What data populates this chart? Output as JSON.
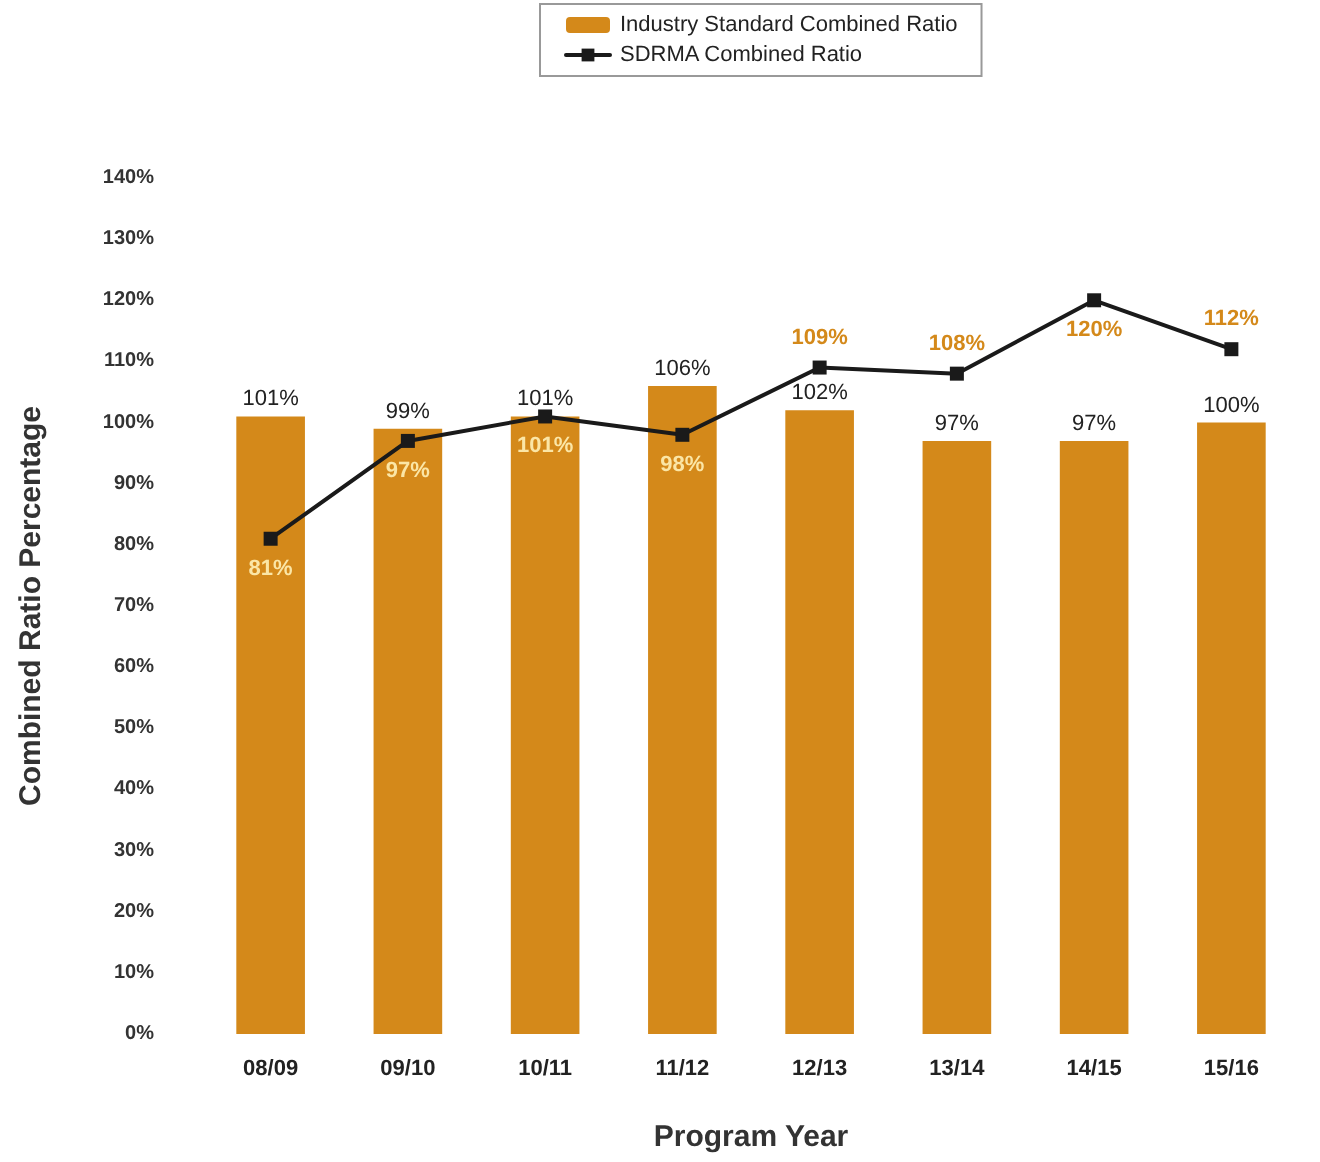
{
  "chart_data": {
    "type": "bar",
    "xlabel": "Program Year",
    "ylabel": "Combined Ratio Percentage",
    "categories": [
      "08/09",
      "09/10",
      "10/11",
      "11/12",
      "12/13",
      "13/14",
      "14/15",
      "15/16"
    ],
    "series": [
      {
        "name": "Industry Standard Combined Ratio",
        "color": "#d4891a",
        "values": [
          101,
          99,
          101,
          106,
          102,
          97,
          97,
          100
        ],
        "value_labels": [
          "101%",
          "99%",
          "101%",
          "106%",
          "102%",
          "97%",
          "97%",
          "100%"
        ]
      },
      {
        "name": "SDRMA Combined Ratio",
        "type": "line",
        "color": "#1a1a1a",
        "marker": "square",
        "values": [
          81,
          97,
          101,
          98,
          109,
          108,
          120,
          112
        ],
        "value_labels": [
          "81%",
          "97%",
          "101%",
          "98%",
          "109%",
          "108%",
          "120%",
          "112%"
        ]
      }
    ],
    "ylim": [
      0,
      140
    ],
    "yticks": [
      {
        "value": 0,
        "label": "0%"
      },
      {
        "value": 10,
        "label": "10%"
      },
      {
        "value": 20,
        "label": "20%"
      },
      {
        "value": 30,
        "label": "30%"
      },
      {
        "value": 40,
        "label": "40%"
      },
      {
        "value": 50,
        "label": "50%"
      },
      {
        "value": 60,
        "label": "60%"
      },
      {
        "value": 70,
        "label": "70%"
      },
      {
        "value": 80,
        "label": "80%"
      },
      {
        "value": 90,
        "label": "90%"
      },
      {
        "value": 100,
        "label": "100%"
      },
      {
        "value": 110,
        "label": "110%"
      },
      {
        "value": 120,
        "label": "120%"
      },
      {
        "value": 130,
        "label": "130%"
      },
      {
        "value": 140,
        "label": "140%"
      }
    ],
    "grid": false,
    "legend": "top"
  }
}
